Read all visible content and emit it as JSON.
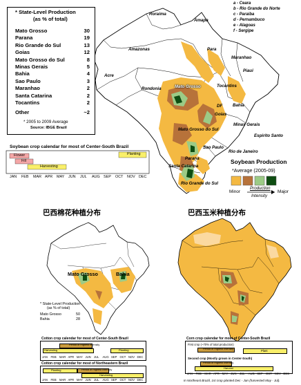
{
  "soy": {
    "table_title": "State-Level Production",
    "table_subtitle": "(as % of total)",
    "asterisk": "*",
    "rows": [
      {
        "state": "Mato Grosso",
        "value": "30"
      },
      {
        "state": "Parana",
        "value": "19"
      },
      {
        "state": "Rio Grande do Sul",
        "value": "13"
      },
      {
        "state": "Goias",
        "value": "12"
      },
      {
        "state": "Mato Grosso do Sul",
        "value": "8"
      },
      {
        "state": "Minas Gerais",
        "value": "5"
      },
      {
        "state": "Bahia",
        "value": "4"
      },
      {
        "state": "Sao Paulo",
        "value": "3"
      },
      {
        "state": "Maranhao",
        "value": "2"
      },
      {
        "state": "Santa Catarina",
        "value": "2"
      },
      {
        "state": "Tocantins",
        "value": "2"
      },
      {
        "state": "Other",
        "value": "~2"
      }
    ],
    "footnote": "2005 to 2009 Average",
    "source": "Source: IBGE Brazil",
    "calendar_title": "Soybean crop calendar for most of Center-South Brazil",
    "calendar_phases": [
      "Flower",
      "Fill",
      "Harvesting",
      "Planting"
    ],
    "months": [
      "JAN",
      "FEB",
      "MAR",
      "APR",
      "MAY",
      "JUN",
      "JUL",
      "AUG",
      "SEP",
      "OCT",
      "NOV",
      "DEC"
    ],
    "legend_title": "Soybean Production",
    "legend_subtitle": "*Average (2005-09)",
    "legend_minor": "Minor",
    "legend_major": "Major",
    "legend_arrow_top": "Production",
    "legend_arrow_bottom": "Intensity",
    "legend_colors": [
      "#f4b942",
      "#b7723a",
      "#9ccb86",
      "#0e4d12"
    ]
  },
  "ne_key": [
    "a - Ceara",
    "b - Rio Grande do Norte",
    "c - Paraiba",
    "d - Pernambuco",
    "e - Alagoas",
    "f - Sergipe"
  ],
  "map_states": {
    "roraima": "Roraima",
    "amapa": "Amapa",
    "amazonas": "Amazonas",
    "para": "Para",
    "maranhao": "Maranhao",
    "piaui": "Piaui",
    "acre": "Acre",
    "rondonia": "Rondonia",
    "tocantins": "Tocantins",
    "mato_grosso": "Mato Grosso",
    "bahia": "Bahia",
    "goias": "Goias",
    "minas": "Minas Gerais",
    "mgs": "Mato Grosso do Sul",
    "sao_paulo": "Sao Paulo",
    "espirito": "Espirito Santo",
    "rio": "Rio de Janeiro",
    "parana": "Parana",
    "santa_catarina": "Santa Catarina",
    "rgs": "Rio Grande do Sul",
    "df": "DF"
  },
  "cotton": {
    "heading": "巴西棉花种植分布",
    "label_mt": "Mato Grosso",
    "label_bahia": "Bahia",
    "table_title": "State-Level Production",
    "table_subtitle": "(as % of total)",
    "rows": [
      {
        "state": "Mato Grosso",
        "value": "50"
      },
      {
        "state": "Bahia",
        "value": "28"
      }
    ],
    "cal1_title": "Cotton crop calendar for most of Center-South Brazil",
    "cal1_intensity": "Period of Highest Intensity",
    "cal1_phases": [
      "Harvesting",
      "Planting"
    ],
    "cal2_title": "Cotton crop calendar for most of Northeastern Brazil",
    "cal2_intensity": "Period of Highest Intensity",
    "cal2_phases": [
      "Planting",
      "Harvesting"
    ]
  },
  "corn": {
    "heading": "巴西玉米种植分布",
    "cal_title": "Corn crop calendar for most of Center-South Brazil",
    "first_crop": "First crop (~70% of total production)",
    "first_intensity": "Period of Highest Intensity",
    "first_phase": "Plant",
    "second_crop": "Second crop (Mostly grown in Center-South)",
    "second_intensity": "Period of Highest Intensity",
    "second_phase": "Harvest",
    "note": "In Northeast Brazil, 1st crop planted Dec - Jan (harvested May - Jul)."
  }
}
